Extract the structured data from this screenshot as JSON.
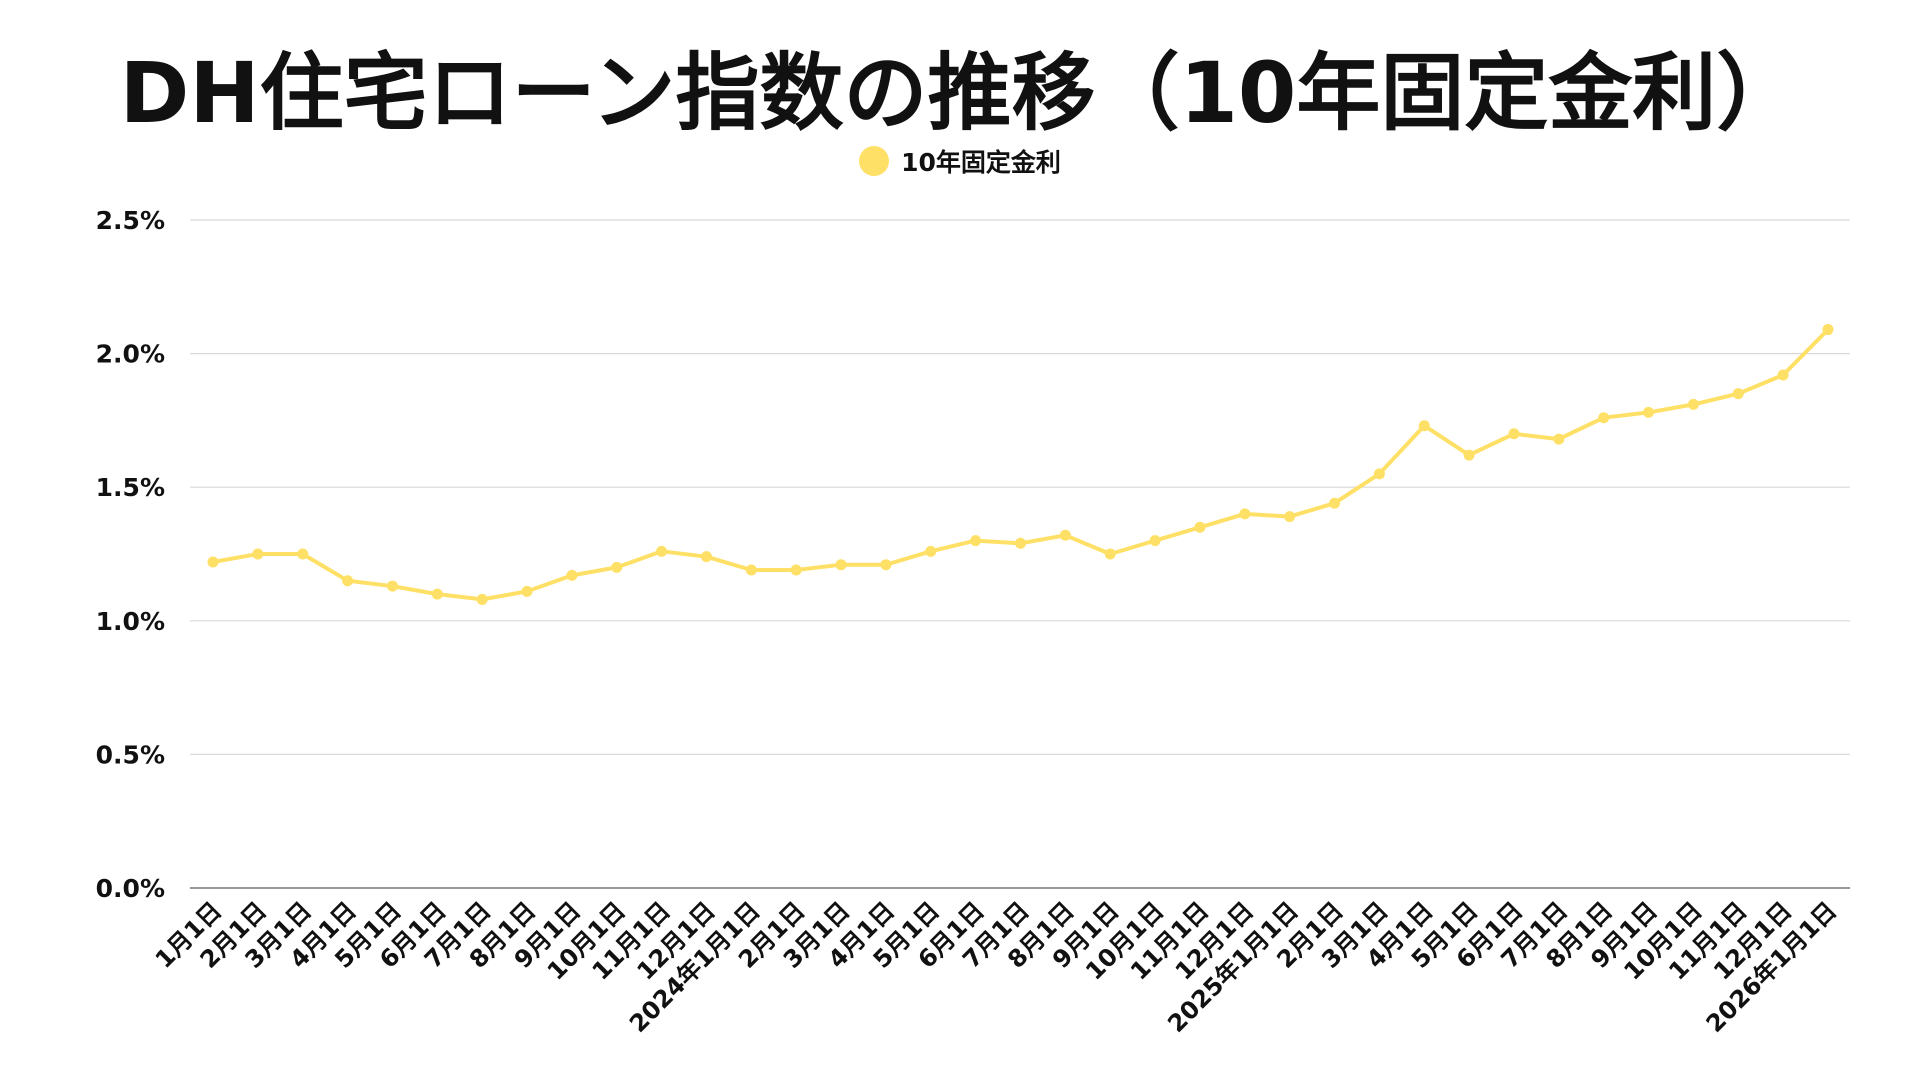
{
  "chart_data": {
    "type": "line",
    "title": "DH住宅ローン指数の推移（10年固定金利）",
    "xlabel": "",
    "ylabel": "",
    "categories": [
      "1月1日",
      "2月1日",
      "3月1日",
      "4月1日",
      "5月1日",
      "6月1日",
      "7月1日",
      "8月1日",
      "9月1日",
      "10月1日",
      "11月1日",
      "12月1日",
      "2024年1月1日",
      "2月1日",
      "3月1日",
      "4月1日",
      "5月1日",
      "6月1日",
      "7月1日",
      "8月1日",
      "9月1日",
      "10月1日",
      "11月1日",
      "12月1日",
      "2025年1月1日",
      "2月1日",
      "3月1日",
      "4月1日",
      "5月1日",
      "6月1日",
      "7月1日",
      "8月1日",
      "9月1日",
      "10月1日",
      "11月1日",
      "12月1日",
      "2026年1月1日"
    ],
    "series": [
      {
        "name": "10年固定金利",
        "color": "#FFE066",
        "values": [
          1.22,
          1.25,
          1.25,
          1.15,
          1.13,
          1.1,
          1.08,
          1.11,
          1.17,
          1.2,
          1.26,
          1.24,
          1.19,
          1.19,
          1.21,
          1.21,
          1.26,
          1.3,
          1.29,
          1.32,
          1.25,
          1.3,
          1.35,
          1.4,
          1.39,
          1.44,
          1.55,
          1.73,
          1.62,
          1.7,
          1.68,
          1.76,
          1.78,
          1.81,
          1.85,
          1.92,
          2.09
        ]
      }
    ],
    "ylim": [
      0,
      2.5
    ],
    "yticks": [
      0.0,
      0.5,
      1.0,
      1.5,
      2.0,
      2.5
    ],
    "ytick_labels": [
      "0.0%",
      "0.5%",
      "1.0%",
      "1.5%",
      "2.0%",
      "2.5%"
    ],
    "grid": true,
    "legend_position": "top-center",
    "colors": {
      "line": "#FFE066",
      "grid": "#d9d9d9",
      "axis": "#999999",
      "text": "#111111"
    }
  }
}
